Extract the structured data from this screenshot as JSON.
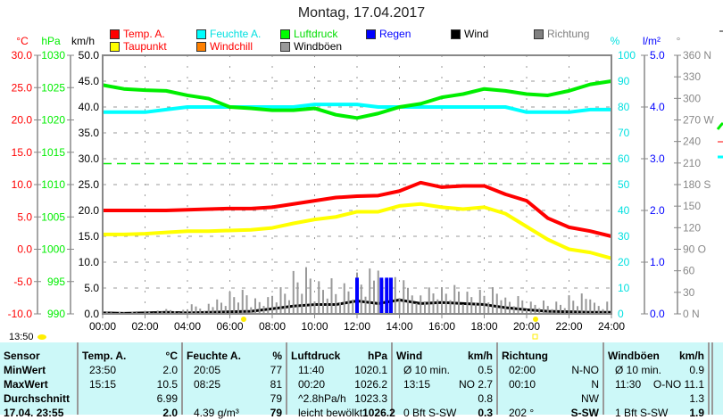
{
  "title": "Montag, 17.04.2017",
  "legend": [
    {
      "label": "Temp. A.",
      "color": "#ff0000",
      "text_color": "#ff0000"
    },
    {
      "label": "Taupunkt",
      "color": "#ffff00",
      "text_color": "#ff0000"
    },
    {
      "label": "Feuchte A.",
      "color": "#00ffff",
      "text_color": "#00e0e0"
    },
    {
      "label": "Windchill",
      "color": "#ff8000",
      "text_color": "#ff0000"
    },
    {
      "label": "Luftdruck",
      "color": "#00ff00",
      "text_color": "#00dd00"
    },
    {
      "label": "Windböen",
      "color": "#999999",
      "text_color": "#000000"
    },
    {
      "label": "Regen",
      "color": "#0000ff",
      "text_color": "#0000ff"
    },
    {
      "label": "Wind",
      "color": "#000000",
      "text_color": "#000000"
    },
    {
      "label": "Richtung",
      "color": "#808080",
      "text_color": "#808080"
    }
  ],
  "axes": {
    "temp": {
      "unit": "°C",
      "ticks": [
        "30.0",
        "25.0",
        "20.0",
        "15.0",
        "10.0",
        "5.0",
        "0.0",
        "-5.0",
        "-10.0"
      ]
    },
    "pressure": {
      "unit": "hPa",
      "ticks": [
        "1030",
        "1025",
        "1020",
        "1015",
        "1010",
        "1005",
        "1000",
        "995",
        "990"
      ]
    },
    "wind": {
      "unit": "km/h",
      "ticks": [
        "50.0",
        "45.0",
        "40.0",
        "35.0",
        "30.0",
        "25.0",
        "20.0",
        "15.0",
        "10.0",
        "5.0",
        "0.0"
      ]
    },
    "humidity": {
      "unit": "%",
      "ticks": [
        "100",
        "90",
        "80",
        "70",
        "60",
        "50",
        "40",
        "30",
        "20",
        "10",
        "0"
      ]
    },
    "rain": {
      "unit": "l/m²",
      "ticks": [
        "5.0",
        "4.0",
        "3.0",
        "2.0",
        "1.0",
        "0.0"
      ]
    },
    "direction": {
      "unit": "°",
      "ticks": [
        "360 N",
        "330",
        "300",
        "270 W",
        "240",
        "210",
        "180 S",
        "150",
        "120",
        "90  O",
        "60",
        "30",
        "0   N"
      ]
    },
    "time": [
      "00:00",
      "02:00",
      "04:00",
      "06:00",
      "08:00",
      "10:00",
      "12:00",
      "14:00",
      "16:00",
      "18:00",
      "20:00",
      "22:00",
      "24:00"
    ]
  },
  "chart_data": {
    "type": "line",
    "x_hours": [
      0,
      1,
      2,
      3,
      4,
      5,
      6,
      7,
      8,
      9,
      10,
      11,
      12,
      13,
      14,
      15,
      16,
      17,
      18,
      19,
      20,
      21,
      22,
      23,
      24
    ],
    "series": [
      {
        "name": "Temp. A.",
        "unit": "°C",
        "color": "#ff0000",
        "values": [
          6.0,
          6.0,
          6.0,
          6.0,
          6.1,
          6.2,
          6.3,
          6.3,
          6.5,
          7.0,
          7.5,
          8.0,
          8.2,
          8.3,
          9.0,
          10.3,
          9.6,
          9.8,
          9.8,
          8.5,
          7.5,
          4.8,
          3.4,
          2.8,
          2.0
        ]
      },
      {
        "name": "Taupunkt",
        "unit": "°C",
        "color": "#ffff00",
        "values": [
          2.3,
          2.3,
          2.4,
          2.6,
          2.8,
          2.8,
          2.9,
          3.0,
          3.3,
          4.0,
          4.6,
          5.0,
          5.8,
          5.8,
          6.7,
          7.0,
          6.5,
          6.2,
          6.5,
          5.5,
          3.5,
          1.5,
          0.0,
          -0.5,
          -1.4
        ]
      },
      {
        "name": "Feuchte A.",
        "unit": "%",
        "color": "#00ffff",
        "values": [
          78,
          78,
          78,
          79,
          80,
          80,
          80,
          80,
          80,
          80,
          81,
          81,
          81,
          80,
          80,
          80,
          80,
          80,
          80,
          80,
          78,
          78,
          78,
          79,
          79
        ]
      },
      {
        "name": "Luftdruck",
        "unit": "hPa",
        "color": "#00ee00",
        "values": [
          1025.4,
          1024.8,
          1024.6,
          1024.5,
          1023.8,
          1023.3,
          1022.0,
          1021.8,
          1021.5,
          1021.5,
          1021.8,
          1020.8,
          1020.3,
          1021.0,
          1022.0,
          1022.5,
          1023.5,
          1024.0,
          1024.8,
          1024.5,
          1024.0,
          1023.8,
          1024.5,
          1025.5,
          1026.0
        ]
      },
      {
        "name": "Wind",
        "unit": "km/h",
        "color": "#000000",
        "values": [
          0.2,
          0.1,
          0.2,
          0.3,
          0.2,
          0.3,
          0.4,
          0.5,
          1.0,
          1.5,
          1.8,
          1.8,
          2.5,
          2.0,
          2.7,
          2.0,
          2.2,
          2.0,
          1.8,
          1.2,
          0.8,
          0.5,
          0.4,
          0.3,
          0.3
        ]
      },
      {
        "name": "Windböen",
        "unit": "km/h",
        "color": "#999999",
        "values": [
          0.5,
          0.5,
          0.8,
          1.0,
          2.0,
          3.0,
          5.0,
          3.5,
          6.0,
          10.5,
          8.0,
          7.5,
          11.1,
          9.0,
          7.0,
          5.5,
          6.0,
          5.0,
          6.0,
          4.0,
          3.0,
          3.0,
          5.0,
          3.0,
          1.9
        ]
      }
    ],
    "rain": [
      {
        "hour": 12.0,
        "value": 0.7
      },
      {
        "hour": 13.15,
        "value": 0.7
      },
      {
        "hour": 13.4,
        "value": 0.7
      },
      {
        "hour": 13.6,
        "value": 0.7
      }
    ],
    "reference_line": {
      "hPa": 1013.25,
      "color": "#00ee00"
    },
    "ylim_temp": [
      -10,
      30
    ],
    "ylim_pressure": [
      990,
      1030
    ],
    "ylim_wind": [
      0,
      50
    ],
    "ylim_humidity": [
      0,
      100
    ],
    "ylim_rain": [
      0,
      5
    ],
    "ylim_direction": [
      0,
      360
    ],
    "xlim_hours": [
      0,
      24
    ]
  },
  "current_time": "13:50",
  "table": {
    "columns": [
      {
        "header": "Sensor",
        "unit": "",
        "rows": [
          [
            "MinWert",
            ""
          ],
          [
            "MaxWert",
            ""
          ],
          [
            "Durchschnitt",
            ""
          ],
          [
            "17.04. 23:55",
            ""
          ]
        ]
      },
      {
        "header": "Temp. A.",
        "unit": "°C",
        "rows": [
          [
            "23:50",
            "2.0"
          ],
          [
            "15:15",
            "10.5"
          ],
          [
            "",
            "6.99"
          ],
          [
            "",
            "2.0"
          ]
        ]
      },
      {
        "header": "Feuchte A.",
        "unit": "%",
        "rows": [
          [
            "20:05",
            "77"
          ],
          [
            "08:25",
            "81"
          ],
          [
            "",
            "79"
          ],
          [
            "4.39 g/m³",
            "79"
          ]
        ]
      },
      {
        "header": "Luftdruck",
        "unit": "hPa",
        "rows": [
          [
            "11:40",
            "1020.1"
          ],
          [
            "00:20",
            "1026.2"
          ],
          [
            "^2.8hPa/h",
            "1023.3"
          ],
          [
            "leicht bewölkt",
            "1026.2"
          ]
        ]
      },
      {
        "header": "Wind",
        "unit": "km/h",
        "rows": [
          [
            "Ø 10 min.",
            "0.5"
          ],
          [
            "13:15",
            "NO 2.7"
          ],
          [
            "",
            "0.8"
          ],
          [
            "0 Bft S-SW",
            "0.3"
          ]
        ]
      },
      {
        "header": "Richtung",
        "unit": "",
        "rows": [
          [
            "02:00",
            "N-NO"
          ],
          [
            "00:10",
            "N"
          ],
          [
            "",
            "NW"
          ],
          [
            "202 °",
            "S-SW"
          ]
        ]
      },
      {
        "header": "Windböen",
        "unit": "km/h",
        "rows": [
          [
            "Ø 10 min.",
            "0.9"
          ],
          [
            "11:30",
            "O-NO 11.1"
          ],
          [
            "",
            "1.3"
          ],
          [
            "1 Bft S-SW",
            "1.9"
          ]
        ]
      }
    ]
  }
}
